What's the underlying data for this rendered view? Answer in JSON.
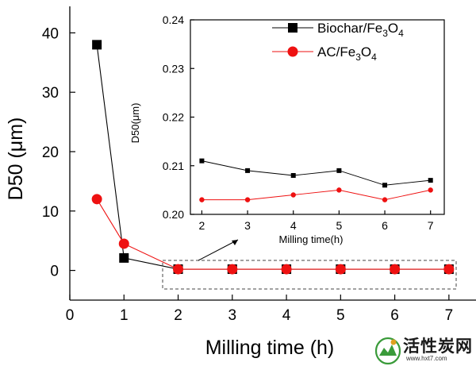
{
  "chart_data": [
    {
      "type": "line",
      "xlabel": "Milling time (h)",
      "ylabel": "D50 (μm)",
      "xlim": [
        0,
        7.5
      ],
      "ylim": [
        -5,
        45
      ],
      "xticks": [
        0,
        1,
        2,
        3,
        4,
        5,
        6,
        7
      ],
      "yticks": [
        0,
        10,
        20,
        30,
        40
      ],
      "legend_position": "top-right",
      "series": [
        {
          "name": "Biochar/Fe3O4",
          "color": "#000000",
          "marker": "square",
          "x": [
            0.5,
            1,
            2,
            3,
            4,
            5,
            6,
            7
          ],
          "values": [
            38,
            2.1,
            0.211,
            0.209,
            0.208,
            0.209,
            0.206,
            0.207
          ]
        },
        {
          "name": "AC/Fe3O4",
          "color": "#ee1111",
          "marker": "circle",
          "x": [
            0.5,
            1,
            2,
            3,
            4,
            5,
            6,
            7
          ],
          "values": [
            12,
            4.5,
            0.203,
            0.203,
            0.204,
            0.205,
            0.203,
            0.205
          ]
        }
      ]
    },
    {
      "type": "line",
      "xlabel": "Milling time(h)",
      "ylabel": "D50(μm)",
      "xlim": [
        1.75,
        7.3
      ],
      "ylim": [
        0.2,
        0.24
      ],
      "xticks": [
        2,
        3,
        4,
        5,
        6,
        7
      ],
      "yticks": [
        0.2,
        0.21,
        0.22,
        0.23,
        0.24
      ],
      "series": [
        {
          "name": "Biochar/Fe3O4",
          "color": "#000000",
          "marker": "square",
          "x": [
            2,
            3,
            4,
            5,
            6,
            7
          ],
          "values": [
            0.211,
            0.209,
            0.208,
            0.209,
            0.206,
            0.207
          ]
        },
        {
          "name": "AC/Fe3O4",
          "color": "#ee1111",
          "marker": "circle",
          "x": [
            2,
            3,
            4,
            5,
            6,
            7
          ],
          "values": [
            0.203,
            0.203,
            0.204,
            0.205,
            0.203,
            0.205
          ]
        }
      ]
    }
  ],
  "legend": [
    {
      "base": "Biochar/Fe",
      "sub1": "3",
      "mid": "O",
      "sub2": "4"
    },
    {
      "base": "AC/Fe",
      "sub1": "3",
      "mid": "O",
      "sub2": "4"
    }
  ],
  "watermark": {
    "text": "活性炭网",
    "url": "www.hxt7.com"
  }
}
